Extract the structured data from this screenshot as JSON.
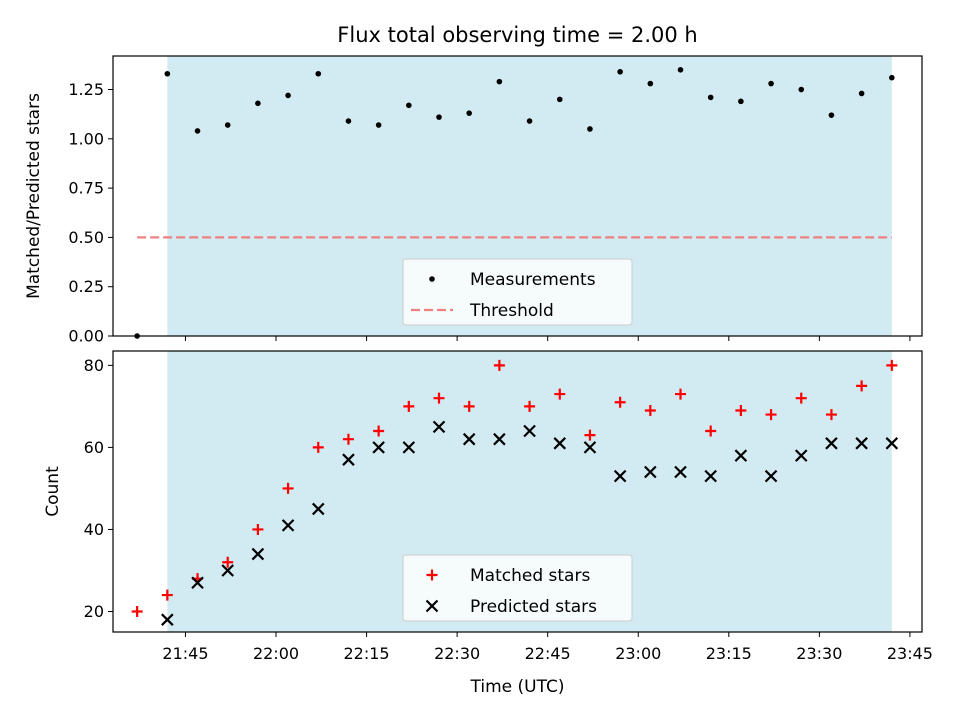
{
  "chart_data": [
    {
      "type": "scatter",
      "title": "Flux total observing time = 2.00 h",
      "xlabel": "",
      "ylabel": "Matched/Predicted stars",
      "xlim": [
        "21:33",
        "23:47"
      ],
      "ylim": [
        0,
        1.42
      ],
      "yticks": [
        "0.00",
        "0.25",
        "0.50",
        "0.75",
        "1.00",
        "1.25"
      ],
      "shaded_interval": [
        "21:42",
        "23:42"
      ],
      "shade_color": "#add8e6",
      "legend_position": "lower center",
      "series": [
        {
          "name": "Measurements",
          "marker": "dot",
          "color": "#000000",
          "points": [
            {
              "x": "21:37",
              "y": 0.0
            },
            {
              "x": "21:42",
              "y": 1.33
            },
            {
              "x": "21:47",
              "y": 1.04
            },
            {
              "x": "21:52",
              "y": 1.07
            },
            {
              "x": "21:57",
              "y": 1.18
            },
            {
              "x": "22:02",
              "y": 1.22
            },
            {
              "x": "22:07",
              "y": 1.33
            },
            {
              "x": "22:12",
              "y": 1.09
            },
            {
              "x": "22:17",
              "y": 1.07
            },
            {
              "x": "22:22",
              "y": 1.17
            },
            {
              "x": "22:27",
              "y": 1.11
            },
            {
              "x": "22:32",
              "y": 1.13
            },
            {
              "x": "22:37",
              "y": 1.29
            },
            {
              "x": "22:42",
              "y": 1.09
            },
            {
              "x": "22:47",
              "y": 1.2
            },
            {
              "x": "22:52",
              "y": 1.05
            },
            {
              "x": "22:57",
              "y": 1.34
            },
            {
              "x": "23:02",
              "y": 1.28
            },
            {
              "x": "23:07",
              "y": 1.35
            },
            {
              "x": "23:12",
              "y": 1.21
            },
            {
              "x": "23:17",
              "y": 1.19
            },
            {
              "x": "23:22",
              "y": 1.28
            },
            {
              "x": "23:27",
              "y": 1.25
            },
            {
              "x": "23:32",
              "y": 1.12
            },
            {
              "x": "23:37",
              "y": 1.23
            },
            {
              "x": "23:42",
              "y": 1.31
            }
          ]
        },
        {
          "name": "Threshold",
          "type": "line",
          "style": "dashed",
          "color": "#f08080",
          "points": [
            {
              "x": "21:37",
              "y": 0.5
            },
            {
              "x": "23:42",
              "y": 0.5
            }
          ]
        }
      ]
    },
    {
      "type": "scatter",
      "title": "",
      "xlabel": "Time (UTC)",
      "ylabel": "Count",
      "xlim": [
        "21:33",
        "23:47"
      ],
      "ylim": [
        15,
        83.5
      ],
      "xticks": [
        "21:45",
        "22:00",
        "22:15",
        "22:30",
        "22:45",
        "23:00",
        "23:15",
        "23:30",
        "23:45"
      ],
      "yticks": [
        "20",
        "40",
        "60",
        "80"
      ],
      "shaded_interval": [
        "21:42",
        "23:42"
      ],
      "shade_color": "#add8e6",
      "legend_position": "lower center",
      "series": [
        {
          "name": "Matched stars",
          "marker": "plus",
          "color": "#ff0000",
          "points": [
            {
              "x": "21:37",
              "y": 20
            },
            {
              "x": "21:42",
              "y": 24
            },
            {
              "x": "21:47",
              "y": 28
            },
            {
              "x": "21:52",
              "y": 32
            },
            {
              "x": "21:57",
              "y": 40
            },
            {
              "x": "22:02",
              "y": 50
            },
            {
              "x": "22:07",
              "y": 60
            },
            {
              "x": "22:12",
              "y": 62
            },
            {
              "x": "22:17",
              "y": 64
            },
            {
              "x": "22:22",
              "y": 70
            },
            {
              "x": "22:27",
              "y": 72
            },
            {
              "x": "22:32",
              "y": 70
            },
            {
              "x": "22:37",
              "y": 80
            },
            {
              "x": "22:42",
              "y": 70
            },
            {
              "x": "22:47",
              "y": 73
            },
            {
              "x": "22:52",
              "y": 63
            },
            {
              "x": "22:57",
              "y": 71
            },
            {
              "x": "23:02",
              "y": 69
            },
            {
              "x": "23:07",
              "y": 73
            },
            {
              "x": "23:12",
              "y": 64
            },
            {
              "x": "23:17",
              "y": 69
            },
            {
              "x": "23:22",
              "y": 68
            },
            {
              "x": "23:27",
              "y": 72
            },
            {
              "x": "23:32",
              "y": 68
            },
            {
              "x": "23:37",
              "y": 75
            },
            {
              "x": "23:42",
              "y": 80
            }
          ]
        },
        {
          "name": "Predicted stars",
          "marker": "x",
          "color": "#000000",
          "points": [
            {
              "x": "21:42",
              "y": 18
            },
            {
              "x": "21:47",
              "y": 27
            },
            {
              "x": "21:52",
              "y": 30
            },
            {
              "x": "21:57",
              "y": 34
            },
            {
              "x": "22:02",
              "y": 41
            },
            {
              "x": "22:07",
              "y": 45
            },
            {
              "x": "22:12",
              "y": 57
            },
            {
              "x": "22:17",
              "y": 60
            },
            {
              "x": "22:22",
              "y": 60
            },
            {
              "x": "22:27",
              "y": 65
            },
            {
              "x": "22:32",
              "y": 62
            },
            {
              "x": "22:37",
              "y": 62
            },
            {
              "x": "22:42",
              "y": 64
            },
            {
              "x": "22:47",
              "y": 61
            },
            {
              "x": "22:52",
              "y": 60
            },
            {
              "x": "22:57",
              "y": 53
            },
            {
              "x": "23:02",
              "y": 54
            },
            {
              "x": "23:07",
              "y": 54
            },
            {
              "x": "23:12",
              "y": 53
            },
            {
              "x": "23:17",
              "y": 58
            },
            {
              "x": "23:22",
              "y": 53
            },
            {
              "x": "23:27",
              "y": 58
            },
            {
              "x": "23:32",
              "y": 61
            },
            {
              "x": "23:37",
              "y": 61
            },
            {
              "x": "23:42",
              "y": 61
            }
          ]
        }
      ]
    }
  ]
}
